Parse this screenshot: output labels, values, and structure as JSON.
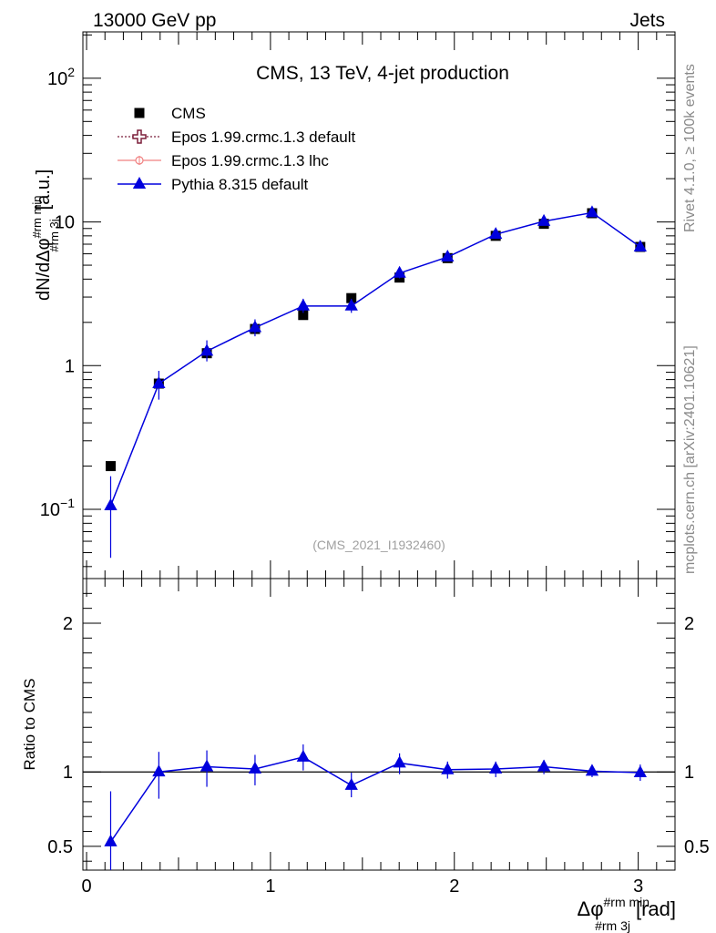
{
  "header": {
    "left": "13000 GeV pp",
    "right": "Jets"
  },
  "plot_title": "CMS, 13 TeV, 4-jet production",
  "analysis_id": "(CMS_2021_I1932460)",
  "side_labels": {
    "rivet": "Rivet 4.1.0, ≥ 100k events",
    "mcplots": "mcplots.cern.ch [arXiv:2401.10621]"
  },
  "legend": [
    {
      "label": "CMS",
      "marker": "square",
      "color": "#000000"
    },
    {
      "label": "Epos 1.99.crmc.1.3 default",
      "marker": "open-cross",
      "color": "#7b1f3a"
    },
    {
      "label": "Epos 1.99.crmc.1.3 lhc",
      "marker": "small-cross",
      "color": "#f08080"
    },
    {
      "label": "Pythia 8.315 default",
      "marker": "triangle",
      "color": "#0000dd"
    }
  ],
  "chart_data": {
    "type": "line",
    "main": {
      "ylabel": "dN/dΔφ",
      "ylabel_sup": "#rm min",
      "ylabel_sub": "#rm 3j",
      "ylabel_unit": "[a.u.]",
      "yscale": "log",
      "ylim": [
        0.033,
        210
      ],
      "ytick_labels": [
        {
          "base": "10",
          "exp": "−1",
          "value": 0.1
        },
        {
          "base": "1",
          "exp": "",
          "value": 1
        },
        {
          "base": "10",
          "exp": "",
          "value": 10
        },
        {
          "base": "10",
          "exp": "2",
          "value": 100
        }
      ],
      "cms": {
        "x": [
          0.131,
          0.393,
          0.654,
          0.916,
          1.178,
          1.44,
          1.702,
          1.963,
          2.225,
          2.487,
          2.749,
          3.011
        ],
        "y": [
          0.2,
          0.75,
          1.22,
          1.8,
          2.25,
          2.95,
          4.1,
          5.6,
          8.0,
          9.7,
          11.5,
          6.7
        ],
        "yerr": [
          0.01,
          0.03,
          0.05,
          0.07,
          0.08,
          0.1,
          0.12,
          0.17,
          0.25,
          0.3,
          0.35,
          0.2
        ]
      },
      "pythia": {
        "x": [
          0.131,
          0.393,
          0.654,
          0.916,
          1.178,
          1.44,
          1.702,
          1.963,
          2.225,
          2.487,
          2.749,
          3.011
        ],
        "y": [
          0.106,
          0.75,
          1.26,
          1.84,
          2.6,
          2.6,
          4.4,
          5.7,
          8.2,
          10.1,
          11.6,
          6.7
        ],
        "ylo": [
          0.046,
          0.58,
          1.07,
          1.6,
          2.33,
          2.33,
          4.05,
          5.4,
          7.8,
          9.7,
          11.2,
          6.4
        ],
        "yhi": [
          0.17,
          0.92,
          1.5,
          2.1,
          2.92,
          2.92,
          4.8,
          6.05,
          8.65,
          10.5,
          12.0,
          7.0
        ]
      }
    },
    "ratio": {
      "ylabel": "Ratio to CMS",
      "ylim": [
        0.34,
        2.3
      ],
      "yticks": [
        0.5,
        1,
        2
      ],
      "ytick_labels": [
        "0.5",
        "1",
        "2"
      ],
      "reference_line": 1,
      "pythia": {
        "x": [
          0.131,
          0.393,
          0.654,
          0.916,
          1.178,
          1.44,
          1.702,
          1.963,
          2.225,
          2.487,
          2.749,
          3.011
        ],
        "y": [
          0.53,
          1.0,
          1.035,
          1.02,
          1.1,
          0.91,
          1.06,
          1.015,
          1.02,
          1.035,
          1.005,
          0.995
        ],
        "ylo": [
          0.3,
          0.82,
          0.9,
          0.91,
          1.01,
          0.83,
          0.985,
          0.955,
          0.965,
          0.985,
          0.965,
          0.94
        ],
        "yhi": [
          0.87,
          1.135,
          1.145,
          1.115,
          1.185,
          0.995,
          1.125,
          1.07,
          1.07,
          1.08,
          1.045,
          1.05
        ]
      }
    },
    "x_axis": {
      "label": "Δφ",
      "label_sup": "#rm min",
      "label_sub": "#rm 3j",
      "label_unit": "[rad]",
      "xlim": [
        -0.02,
        3.2
      ],
      "ticks": [
        0,
        1,
        2,
        3
      ],
      "tick_labels": [
        "0",
        "1",
        "2",
        "3"
      ]
    }
  }
}
